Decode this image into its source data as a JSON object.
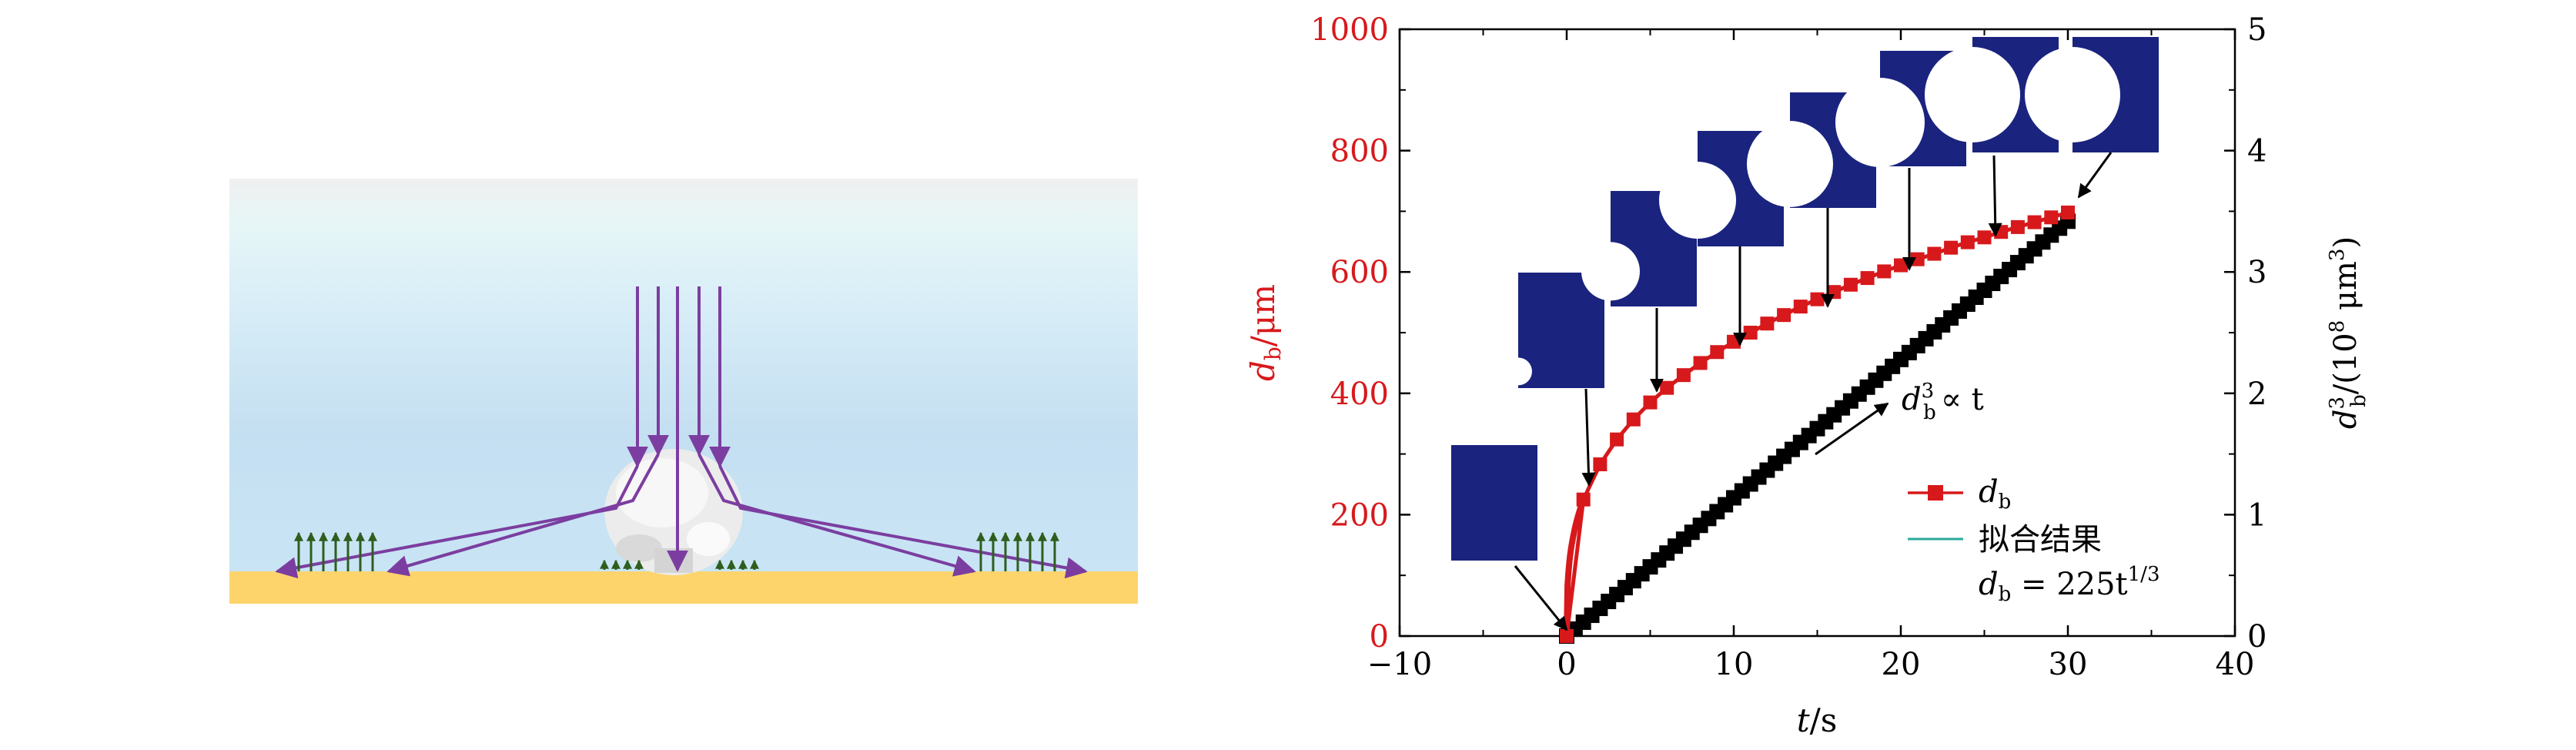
{
  "chart_data": {
    "type": "scatter",
    "x": [
      0,
      1,
      2,
      3,
      4,
      5,
      6,
      7,
      8,
      9,
      10,
      11,
      12,
      13,
      14,
      15,
      16,
      17,
      18,
      19,
      20,
      21,
      22,
      23,
      24,
      25,
      26,
      27,
      28,
      29,
      30
    ],
    "series": [
      {
        "name": "d_b",
        "axis": "left",
        "marker": "square",
        "color": "#d7191c",
        "values": [
          0,
          225,
          283,
          324,
          357,
          385,
          409,
          430,
          450,
          468,
          485,
          500,
          515,
          529,
          543,
          555,
          567,
          579,
          590,
          601,
          611,
          621,
          630,
          640,
          649,
          657,
          666,
          674,
          682,
          690,
          698
        ]
      },
      {
        "name": "d_b^3",
        "axis": "right",
        "marker": "square",
        "color": "#000000",
        "values": [
          0,
          0.114,
          0.228,
          0.342,
          0.456,
          0.57,
          0.684,
          0.798,
          0.912,
          1.025,
          1.139,
          1.253,
          1.367,
          1.481,
          1.595,
          1.709,
          1.823,
          1.937,
          2.051,
          2.165,
          2.279,
          2.393,
          2.507,
          2.621,
          2.735,
          2.849,
          2.963,
          3.077,
          3.19,
          3.304,
          3.418
        ]
      },
      {
        "name": "拟合结果",
        "axis": "left",
        "style": "line",
        "color": "#2ba89a",
        "formula": "d_b = 225t^(1/3)"
      }
    ],
    "xlabel_var": "t",
    "xlabel_unit": "/s",
    "ylabel_var": "d",
    "ylabel_sub": "b",
    "ylabel_unit": "/μm",
    "y2label_var": "d",
    "y2label_sup": "3",
    "y2label_sub": "b",
    "y2label_unit_a": "/(10",
    "y2label_unit_sup": "8",
    "y2label_unit_b": " μm",
    "y2label_unit_sup2": "3",
    "y2label_unit_c": ")",
    "xlim": [
      -10,
      40
    ],
    "ylim": [
      0,
      1000
    ],
    "y2lim": [
      0,
      5
    ],
    "xticks": [
      "−10",
      "0",
      "10",
      "20",
      "30",
      "40"
    ],
    "yticks": [
      "0",
      "200",
      "400",
      "600",
      "800",
      "1000"
    ],
    "y2ticks": [
      "0",
      "1",
      "2",
      "3",
      "4",
      "5"
    ],
    "legend": {
      "position": "bottom-right",
      "db_var": "d",
      "db_sub": "b",
      "fit_label": "拟合结果",
      "eq_var": "d",
      "eq_sub": "b",
      "eq_rhs": " = 225t",
      "eq_sup": "1/3"
    },
    "annotation": {
      "var": "d",
      "sub": "b",
      "sup": "3",
      "rest": "∝ t"
    },
    "left_color": "#d7191c",
    "bubble_frame_color": "#1a237e",
    "bubble_frame_times": [
      0,
      5,
      10,
      15,
      20,
      25,
      30
    ]
  },
  "schematic": {
    "colors": {
      "substrate": "#fdd46b",
      "arrow": "#7b3ea0",
      "green_arrow": "#2e5e1e",
      "bubble": "#ececec"
    }
  }
}
